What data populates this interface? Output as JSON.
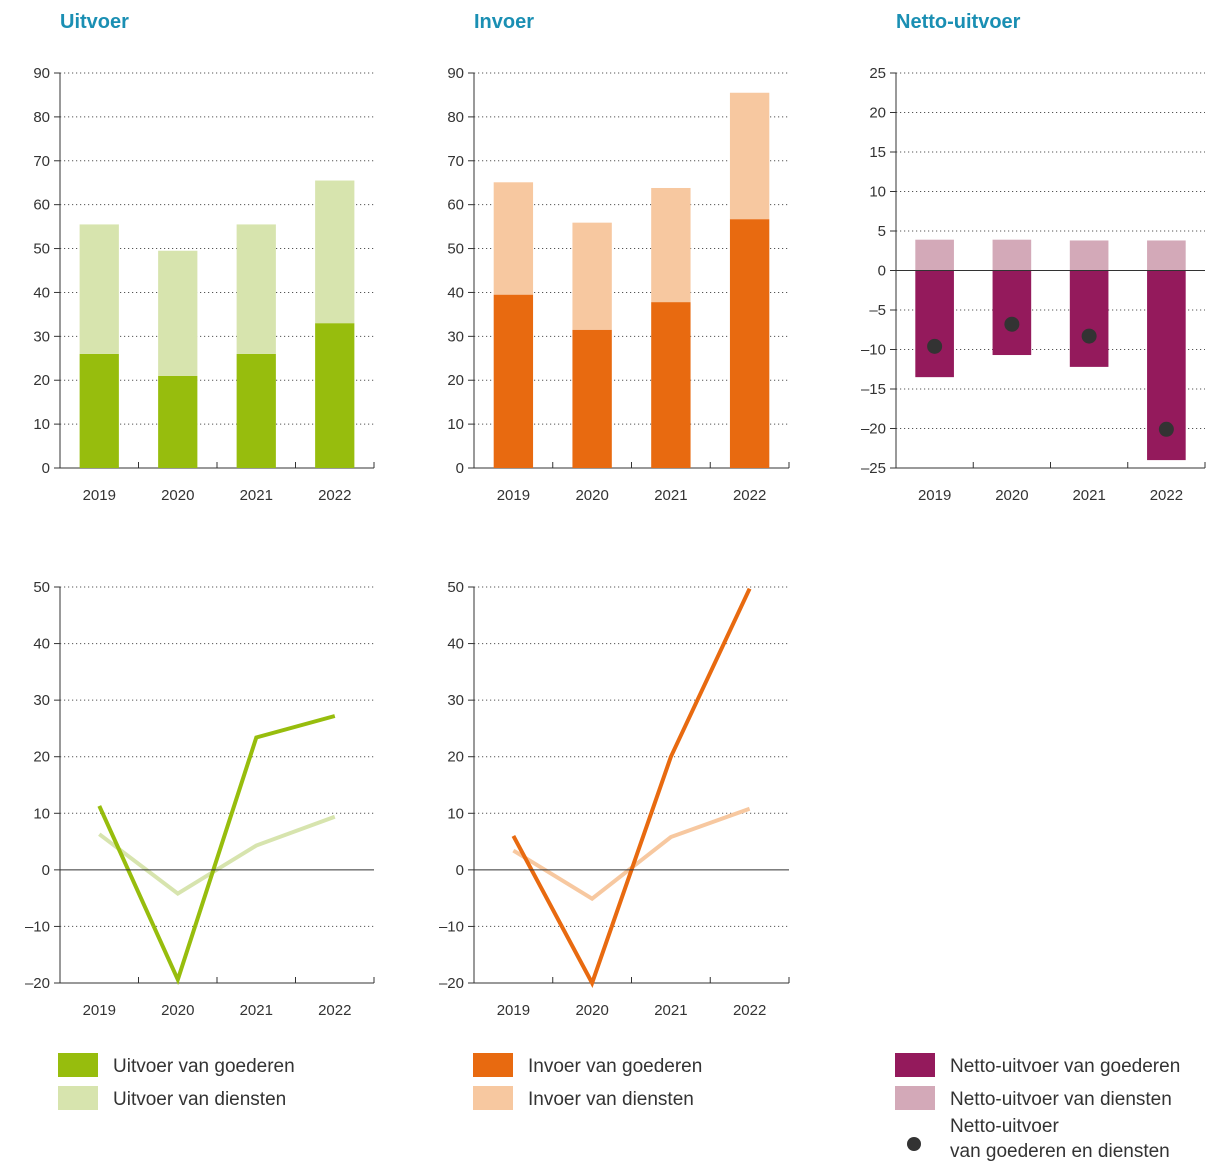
{
  "colors": {
    "goods_green": "#97bd0d",
    "services_green": "#d7e4ae",
    "goods_orange": "#e86a10",
    "services_orange": "#f7c8a0",
    "goods_purple": "#941a5c",
    "services_purple": "#d3a9b8",
    "dot": "#333333",
    "axis": "#333333",
    "title": "#1a8fb3"
  },
  "chart_data": [
    {
      "id": "uitvoer",
      "type": "bar",
      "stacked": true,
      "title": "Uitvoer",
      "categories": [
        "2019",
        "2020",
        "2021",
        "2022"
      ],
      "ylim": [
        0,
        90
      ],
      "yticks": [
        0,
        10,
        20,
        30,
        40,
        50,
        60,
        70,
        80,
        90
      ],
      "grid": true,
      "series": [
        {
          "name": "Uitvoer van goederen",
          "color_key": "goods_green",
          "values": [
            26,
            21,
            26,
            33
          ]
        },
        {
          "name": "Uitvoer van diensten",
          "color_key": "services_green",
          "values": [
            29.5,
            28.5,
            29.5,
            32.5
          ]
        }
      ]
    },
    {
      "id": "invoer",
      "type": "bar",
      "stacked": true,
      "title": "Invoer",
      "categories": [
        "2019",
        "2020",
        "2021",
        "2022"
      ],
      "ylim": [
        0,
        90
      ],
      "yticks": [
        0,
        10,
        20,
        30,
        40,
        50,
        60,
        70,
        80,
        90
      ],
      "grid": true,
      "series": [
        {
          "name": "Invoer van goederen",
          "color_key": "goods_orange",
          "values": [
            39.5,
            31.5,
            37.8,
            56.7
          ]
        },
        {
          "name": "Invoer van diensten",
          "color_key": "services_orange",
          "values": [
            25.6,
            24.4,
            26,
            28.8
          ]
        }
      ]
    },
    {
      "id": "netto",
      "type": "bar",
      "stacked": false,
      "title": "Netto-uitvoer",
      "categories": [
        "2019",
        "2020",
        "2021",
        "2022"
      ],
      "ylim": [
        -25,
        25
      ],
      "yticks": [
        -25,
        -20,
        -15,
        -10,
        -5,
        0,
        5,
        10,
        15,
        20,
        25
      ],
      "grid": true,
      "series": [
        {
          "name": "Netto-uitvoer van diensten",
          "color_key": "services_purple",
          "values": [
            3.9,
            3.9,
            3.8,
            3.8
          ]
        },
        {
          "name": "Netto-uitvoer van goederen",
          "color_key": "goods_purple",
          "values": [
            -13.5,
            -10.7,
            -12.2,
            -24
          ]
        }
      ],
      "points": {
        "name": "Netto-uitvoer van goederen en diensten",
        "color_key": "dot",
        "values": [
          -9.6,
          -6.8,
          -8.3,
          -20.1
        ]
      }
    },
    {
      "id": "uitvoer-groei",
      "type": "line",
      "title": "",
      "categories": [
        "2019",
        "2020",
        "2021",
        "2022"
      ],
      "ylim": [
        -20,
        50
      ],
      "yticks": [
        -20,
        -10,
        0,
        10,
        20,
        30,
        40,
        50
      ],
      "grid": true,
      "series": [
        {
          "name": "Uitvoer van diensten",
          "color_key": "services_green",
          "values": [
            6.3,
            -4.2,
            4.3,
            9.4
          ]
        },
        {
          "name": "Uitvoer van goederen",
          "color_key": "goods_green",
          "values": [
            11.3,
            -19.4,
            23.4,
            27.2
          ]
        }
      ]
    },
    {
      "id": "invoer-groei",
      "type": "line",
      "title": "",
      "categories": [
        "2019",
        "2020",
        "2021",
        "2022"
      ],
      "ylim": [
        -20,
        50
      ],
      "yticks": [
        -20,
        -10,
        0,
        10,
        20,
        30,
        40,
        50
      ],
      "grid": true,
      "series": [
        {
          "name": "Invoer van diensten",
          "color_key": "services_orange",
          "values": [
            3.4,
            -5.1,
            5.8,
            10.8
          ]
        },
        {
          "name": "Invoer van goederen",
          "color_key": "goods_orange",
          "values": [
            6,
            -20,
            20,
            49.7
          ]
        }
      ]
    }
  ],
  "legends": [
    {
      "items": [
        {
          "label": "Uitvoer van goederen",
          "color_key": "goods_green",
          "marker": "square"
        },
        {
          "label": "Uitvoer van diensten",
          "color_key": "services_green",
          "marker": "square"
        }
      ]
    },
    {
      "items": [
        {
          "label": "Invoer van goederen",
          "color_key": "goods_orange",
          "marker": "square"
        },
        {
          "label": "Invoer van diensten",
          "color_key": "services_orange",
          "marker": "square"
        }
      ]
    },
    {
      "items": [
        {
          "label": "Netto-uitvoer van goederen",
          "color_key": "goods_purple",
          "marker": "square"
        },
        {
          "label": "Netto-uitvoer van diensten",
          "color_key": "services_purple",
          "marker": "square"
        },
        {
          "label": "Netto-uitvoer",
          "label_line2": "van goederen en diensten",
          "color_key": "dot",
          "marker": "dot"
        }
      ]
    }
  ]
}
